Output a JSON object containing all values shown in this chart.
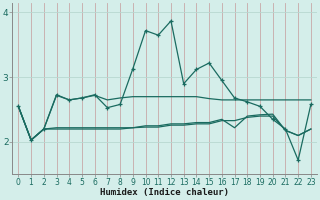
{
  "xlabel": "Humidex (Indice chaleur)",
  "bg_color": "#d4eeea",
  "line_color": "#1a6b60",
  "vgrid_color": "#c8a8a8",
  "hgrid_color": "#b8d8d0",
  "x_values": [
    0,
    1,
    2,
    3,
    4,
    5,
    6,
    7,
    8,
    9,
    10,
    11,
    12,
    13,
    14,
    15,
    16,
    17,
    18,
    19,
    20,
    21,
    22,
    23
  ],
  "line1": [
    2.55,
    2.03,
    2.2,
    2.73,
    2.65,
    2.68,
    2.73,
    2.53,
    2.58,
    3.13,
    3.72,
    3.65,
    3.87,
    2.9,
    3.12,
    3.22,
    2.95,
    2.68,
    2.62,
    2.55,
    2.35,
    2.2,
    1.72,
    2.58
  ],
  "line2": [
    2.55,
    2.03,
    2.2,
    2.72,
    2.65,
    2.68,
    2.72,
    2.65,
    2.68,
    2.7,
    2.7,
    2.7,
    2.7,
    2.7,
    2.7,
    2.67,
    2.65,
    2.65,
    2.65,
    2.65,
    2.65,
    2.65,
    2.65,
    2.65
  ],
  "line3": [
    2.55,
    2.03,
    2.2,
    2.22,
    2.22,
    2.22,
    2.22,
    2.22,
    2.22,
    2.22,
    2.25,
    2.25,
    2.28,
    2.28,
    2.3,
    2.3,
    2.35,
    2.22,
    2.4,
    2.42,
    2.43,
    2.18,
    2.1,
    2.2
  ],
  "line4": [
    2.55,
    2.03,
    2.2,
    2.2,
    2.2,
    2.2,
    2.2,
    2.2,
    2.2,
    2.22,
    2.23,
    2.23,
    2.26,
    2.26,
    2.28,
    2.28,
    2.33,
    2.33,
    2.38,
    2.4,
    2.4,
    2.18,
    2.1,
    2.2
  ],
  "ylim": [
    1.5,
    4.15
  ],
  "yticks": [
    2,
    3,
    4
  ],
  "xlim": [
    -0.5,
    23.5
  ],
  "xlabel_fontsize": 6.5,
  "tick_fontsize": 5.5,
  "ytick_fontsize": 6.5
}
